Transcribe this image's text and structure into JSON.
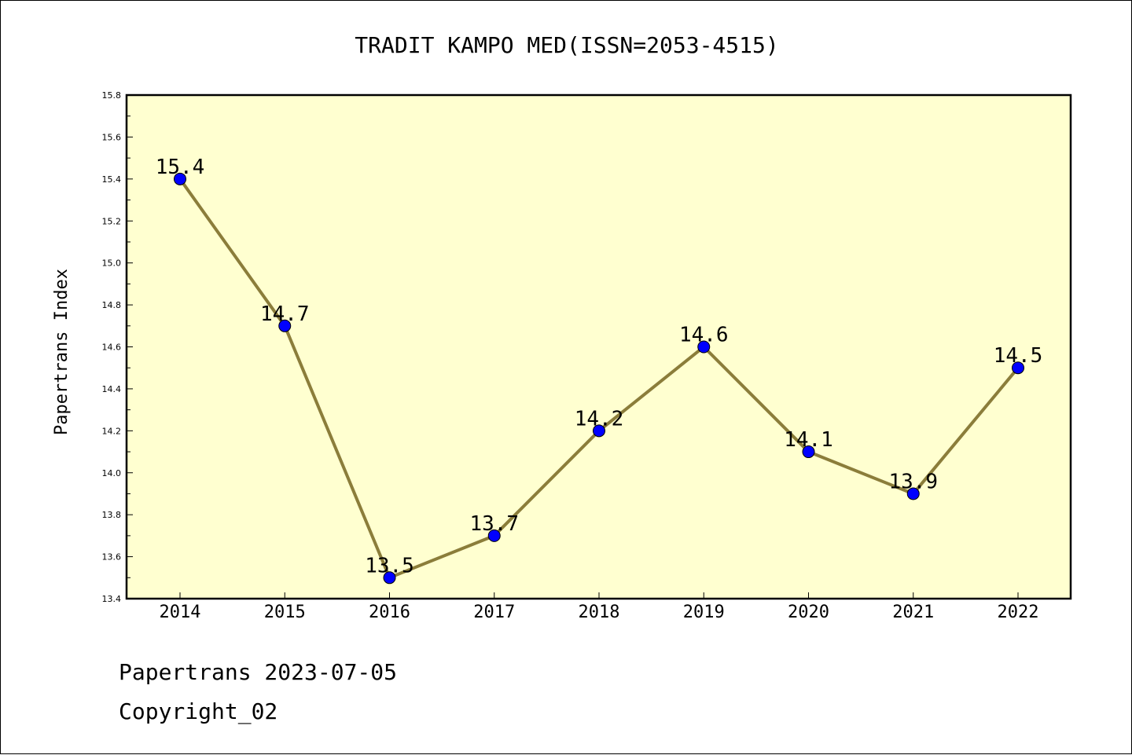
{
  "chart_data": {
    "type": "line",
    "title": "TRADIT KAMPO MED(ISSN=2053-4515)",
    "xlabel": "",
    "ylabel": "Papertrans Index",
    "categories": [
      "2014",
      "2015",
      "2016",
      "2017",
      "2018",
      "2019",
      "2020",
      "2021",
      "2022"
    ],
    "series": [
      {
        "values": [
          15.4,
          14.7,
          13.5,
          13.7,
          14.2,
          14.6,
          14.1,
          13.9,
          14.5
        ],
        "labels": [
          "15.4",
          "14.7",
          "13.5",
          "13.7",
          "14.2",
          "14.6",
          "14.1",
          "13.9",
          "14.5"
        ]
      }
    ],
    "ylim": [
      13.4,
      15.8
    ],
    "yticks": [
      "13.4",
      "13.6",
      "13.8",
      "14.0",
      "14.2",
      "14.4",
      "14.6",
      "14.8",
      "15.0",
      "15.2",
      "15.4",
      "15.6",
      "15.8"
    ],
    "grid": false,
    "legend": "none",
    "colors": {
      "plot_background": "#FFFFD0",
      "line": "#8B7D3A",
      "marker": "#0000FF"
    }
  },
  "footer": {
    "line1": "Papertrans 2023-07-05",
    "line2": "Copyright_02"
  }
}
